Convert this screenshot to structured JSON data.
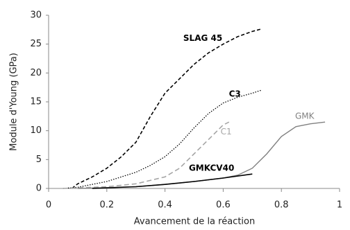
{
  "chart_data": {
    "type": "line",
    "xlabel": "Avancement de la réaction",
    "ylabel": "Module d'Young (GPa)",
    "xlim": [
      0,
      1
    ],
    "xticks": [
      0,
      0.2,
      0.4,
      0.6,
      0.8,
      1
    ],
    "ylim": [
      0,
      30
    ],
    "yticks": [
      0,
      5,
      10,
      15,
      20,
      25,
      30
    ],
    "grid": false,
    "series": [
      {
        "name": "SLAG 45",
        "color": "#000000",
        "dash": "5,3",
        "width": 1.6,
        "label_bold": true,
        "x": [
          0.08,
          0.1,
          0.15,
          0.2,
          0.25,
          0.3,
          0.35,
          0.4,
          0.45,
          0.5,
          0.55,
          0.6,
          0.65,
          0.7,
          0.73
        ],
        "values": [
          0,
          0.8,
          2,
          3.5,
          5.5,
          8,
          12.5,
          16.5,
          19,
          21.5,
          23.5,
          25,
          26.3,
          27.2,
          27.6
        ]
      },
      {
        "name": "C3",
        "color": "#000000",
        "dash": "1.5,2",
        "width": 1.3,
        "label_bold": true,
        "x": [
          0.05,
          0.1,
          0.2,
          0.3,
          0.35,
          0.4,
          0.45,
          0.5,
          0.55,
          0.6,
          0.65,
          0.7,
          0.73
        ],
        "values": [
          0,
          0.2,
          1.2,
          2.8,
          4,
          5.5,
          7.7,
          10.5,
          13,
          14.8,
          15.8,
          16.5,
          17
        ]
      },
      {
        "name": "C1",
        "color": "#a6a6a6",
        "dash": "7,4",
        "width": 1.6,
        "label_bold": false,
        "x": [
          0.05,
          0.2,
          0.3,
          0.4,
          0.45,
          0.5,
          0.55,
          0.6,
          0.62
        ],
        "values": [
          0,
          0.3,
          0.8,
          2,
          3.5,
          6,
          8.5,
          11,
          11.5
        ]
      },
      {
        "name": "GMK",
        "color": "#808080",
        "dash": "",
        "width": 1.4,
        "label_bold": false,
        "x": [
          0.1,
          0.3,
          0.4,
          0.5,
          0.6,
          0.65,
          0.7,
          0.75,
          0.8,
          0.85,
          0.9,
          0.95
        ],
        "values": [
          0,
          0.3,
          0.7,
          1.2,
          1.8,
          2.3,
          3.5,
          6,
          9,
          10.7,
          11.2,
          11.5
        ]
      },
      {
        "name": "GMKCV40",
        "color": "#000000",
        "dash": "",
        "width": 1.6,
        "label_bold": true,
        "x": [
          0.15,
          0.3,
          0.4,
          0.5,
          0.6,
          0.7
        ],
        "values": [
          0,
          0.3,
          0.7,
          1.2,
          1.8,
          2.5
        ]
      }
    ]
  }
}
